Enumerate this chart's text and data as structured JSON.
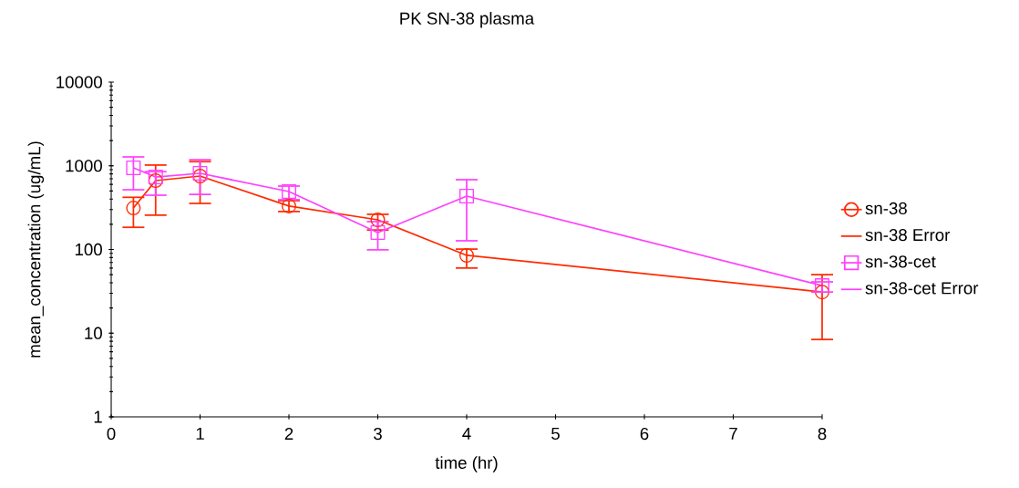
{
  "chart_data": {
    "type": "line",
    "title": "PK SN-38 plasma",
    "xlabel": "time (hr)",
    "ylabel": "mean_concentration (ug/mL)",
    "x": [
      0.25,
      0.5,
      1,
      2,
      3,
      4,
      8
    ],
    "series": [
      {
        "name": "sn-38",
        "color": "#ff2a00",
        "marker": "circle",
        "values": [
          313,
          665,
          754,
          330,
          226,
          85,
          31
        ],
        "errors": [
          [
            184,
            420
          ],
          [
            257,
            1020
          ],
          [
            355,
            1120
          ],
          [
            284,
            383
          ],
          [
            171,
            263
          ],
          [
            60,
            101
          ],
          [
            8.4,
            50
          ]
        ]
      },
      {
        "name": "sn-38-cet",
        "color": "#ff40ff",
        "marker": "square",
        "values": [
          945,
          735,
          813,
          492,
          159,
          434,
          37
        ],
        "errors": [
          [
            517,
            1277
          ],
          [
            445,
            850
          ],
          [
            455,
            1180
          ],
          [
            393,
            572
          ],
          [
            99,
            215
          ],
          [
            127,
            682
          ],
          [
            31,
            41
          ]
        ]
      }
    ],
    "annotations": [
      "sn-38 Error",
      "sn-38-cet Error"
    ],
    "log": "y",
    "xlim": [
      0,
      8
    ],
    "ylim": [
      1,
      10000
    ],
    "xticks": [
      0,
      1,
      2,
      3,
      4,
      5,
      6,
      7,
      8
    ],
    "yticks": [
      1,
      10,
      100,
      1000,
      10000
    ],
    "grid": false,
    "legend": "right",
    "line_style": "solid"
  }
}
